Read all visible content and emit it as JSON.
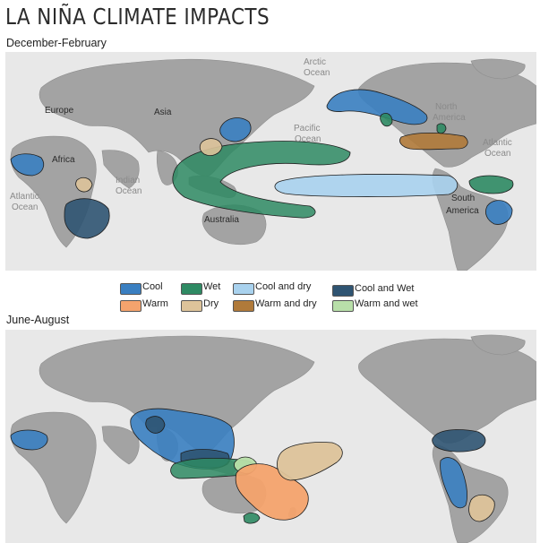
{
  "title": "LA NIÑA CLIMATE IMPACTS",
  "season_1": "December-February",
  "season_2": "June-August",
  "labels_dj": {
    "europe": "Europe",
    "asia": "Asia",
    "africa": "Africa",
    "australia": "Australia",
    "north_america_1": "North",
    "north_america_2": "America",
    "south_america_1": "South",
    "south_america_2": "America",
    "arctic_1": "Arctic",
    "arctic_2": "Ocean",
    "pacific_1": "Pacific",
    "pacific_2": "Ocean",
    "indian_1": "Indian",
    "indian_2": "Ocean",
    "atlantic_w_1": "Atlantic",
    "atlantic_w_2": "Ocean",
    "atlantic_e_1": "Atlantic",
    "atlantic_e_2": "Ocean"
  },
  "legend": [
    {
      "label": "Cool",
      "color": "#3a7fc1"
    },
    {
      "label": "Wet",
      "color": "#2e8a63"
    },
    {
      "label": "Cool and dry",
      "color": "#a9d2ee"
    },
    {
      "label": "Cool and Wet",
      "color": "#2f5472"
    },
    {
      "label": "Warm",
      "color": "#f4a36d"
    },
    {
      "label": "Dry",
      "color": "#ddc39a"
    },
    {
      "label": "Warm and dry",
      "color": "#b07a3a"
    },
    {
      "label": "Warm and wet",
      "color": "#b8dfa9"
    }
  ]
}
